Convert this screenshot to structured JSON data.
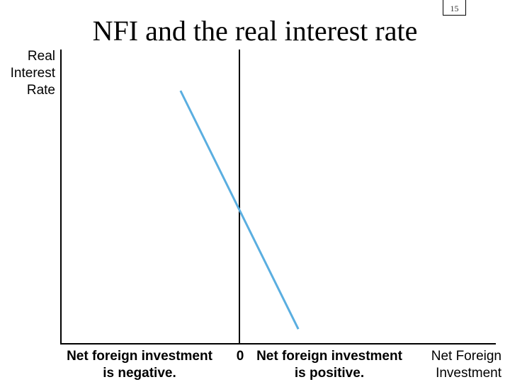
{
  "slide_number": "15",
  "chart_data": {
    "type": "line",
    "title": "NFI and the real interest rate",
    "ylabel": "Real\nInterest\nRate",
    "xlabel": "Net Foreign\nInvestment",
    "annotations": {
      "zero": "0",
      "negative": "Net foreign investment\nis negative.",
      "positive": "Net foreign investment\nis positive."
    },
    "xlim": [
      -1,
      1
    ],
    "ylim": [
      0,
      1
    ],
    "series": [
      {
        "color": "#5aaee0",
        "points": [
          [
            -0.33,
            0.86
          ],
          [
            0.33,
            0.05
          ]
        ]
      }
    ],
    "zero_line": 0,
    "colors": {
      "axis": "#000000",
      "curve": "#5aaee0"
    }
  }
}
